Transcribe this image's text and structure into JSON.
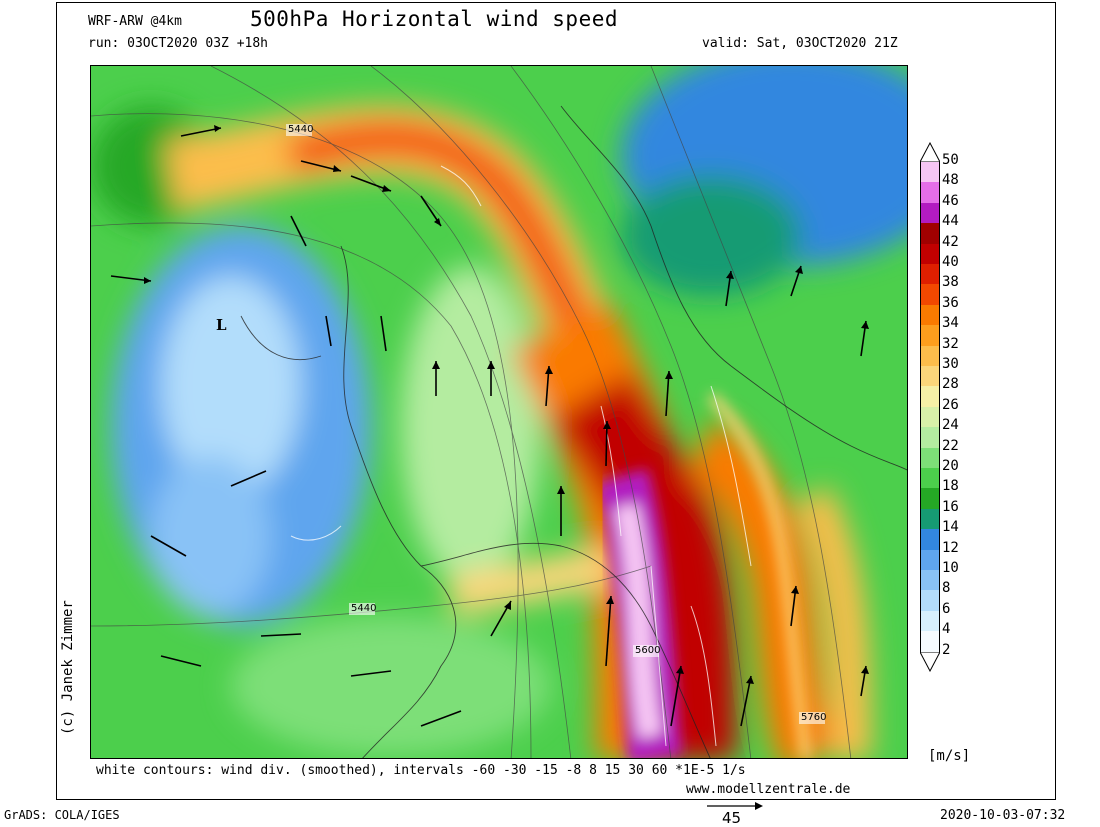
{
  "header": {
    "model": "WRF-ARW @4km",
    "title": "500hPa Horizontal wind speed",
    "run": "run: 03OCT2020 03Z +18h",
    "valid": "valid: Sat, 03OCT2020 21Z"
  },
  "map": {
    "low_marker": "L",
    "contour_labels": [
      "5440",
      "5440",
      "5600",
      "5760"
    ]
  },
  "legend": {
    "values": [
      "50",
      "48",
      "46",
      "44",
      "42",
      "40",
      "38",
      "36",
      "34",
      "32",
      "30",
      "28",
      "26",
      "24",
      "22",
      "20",
      "18",
      "16",
      "14",
      "12",
      "10",
      "8",
      "6",
      "4",
      "2"
    ],
    "colors": [
      "#f6c6f4",
      "#e46ee8",
      "#b21bc1",
      "#a00000",
      "#c10000",
      "#de1f00",
      "#f24800",
      "#fa7a00",
      "#fd9e1d",
      "#fcbd4b",
      "#fbd67a",
      "#f6f0a6",
      "#d8f0a8",
      "#b4eca0",
      "#7ddf78",
      "#4ccf4c",
      "#25a825",
      "#169b73",
      "#3287df",
      "#5fa5ee",
      "#89c2f6",
      "#b2ddfb",
      "#d7f0fd",
      "#f6fbff"
    ],
    "unit": "[m/s]"
  },
  "footer": {
    "contours_note": "white contours: wind div. (smoothed), intervals -60 -30 -15 -8 8 15 30 60 *1E-5 1/s",
    "website": "www.modellzentrale.de",
    "grads": "GrADS: COLA/IGES",
    "timestamp": "2020-10-03-07:32",
    "vector_scale": "45",
    "author": "(c) Janek Zimmer"
  }
}
